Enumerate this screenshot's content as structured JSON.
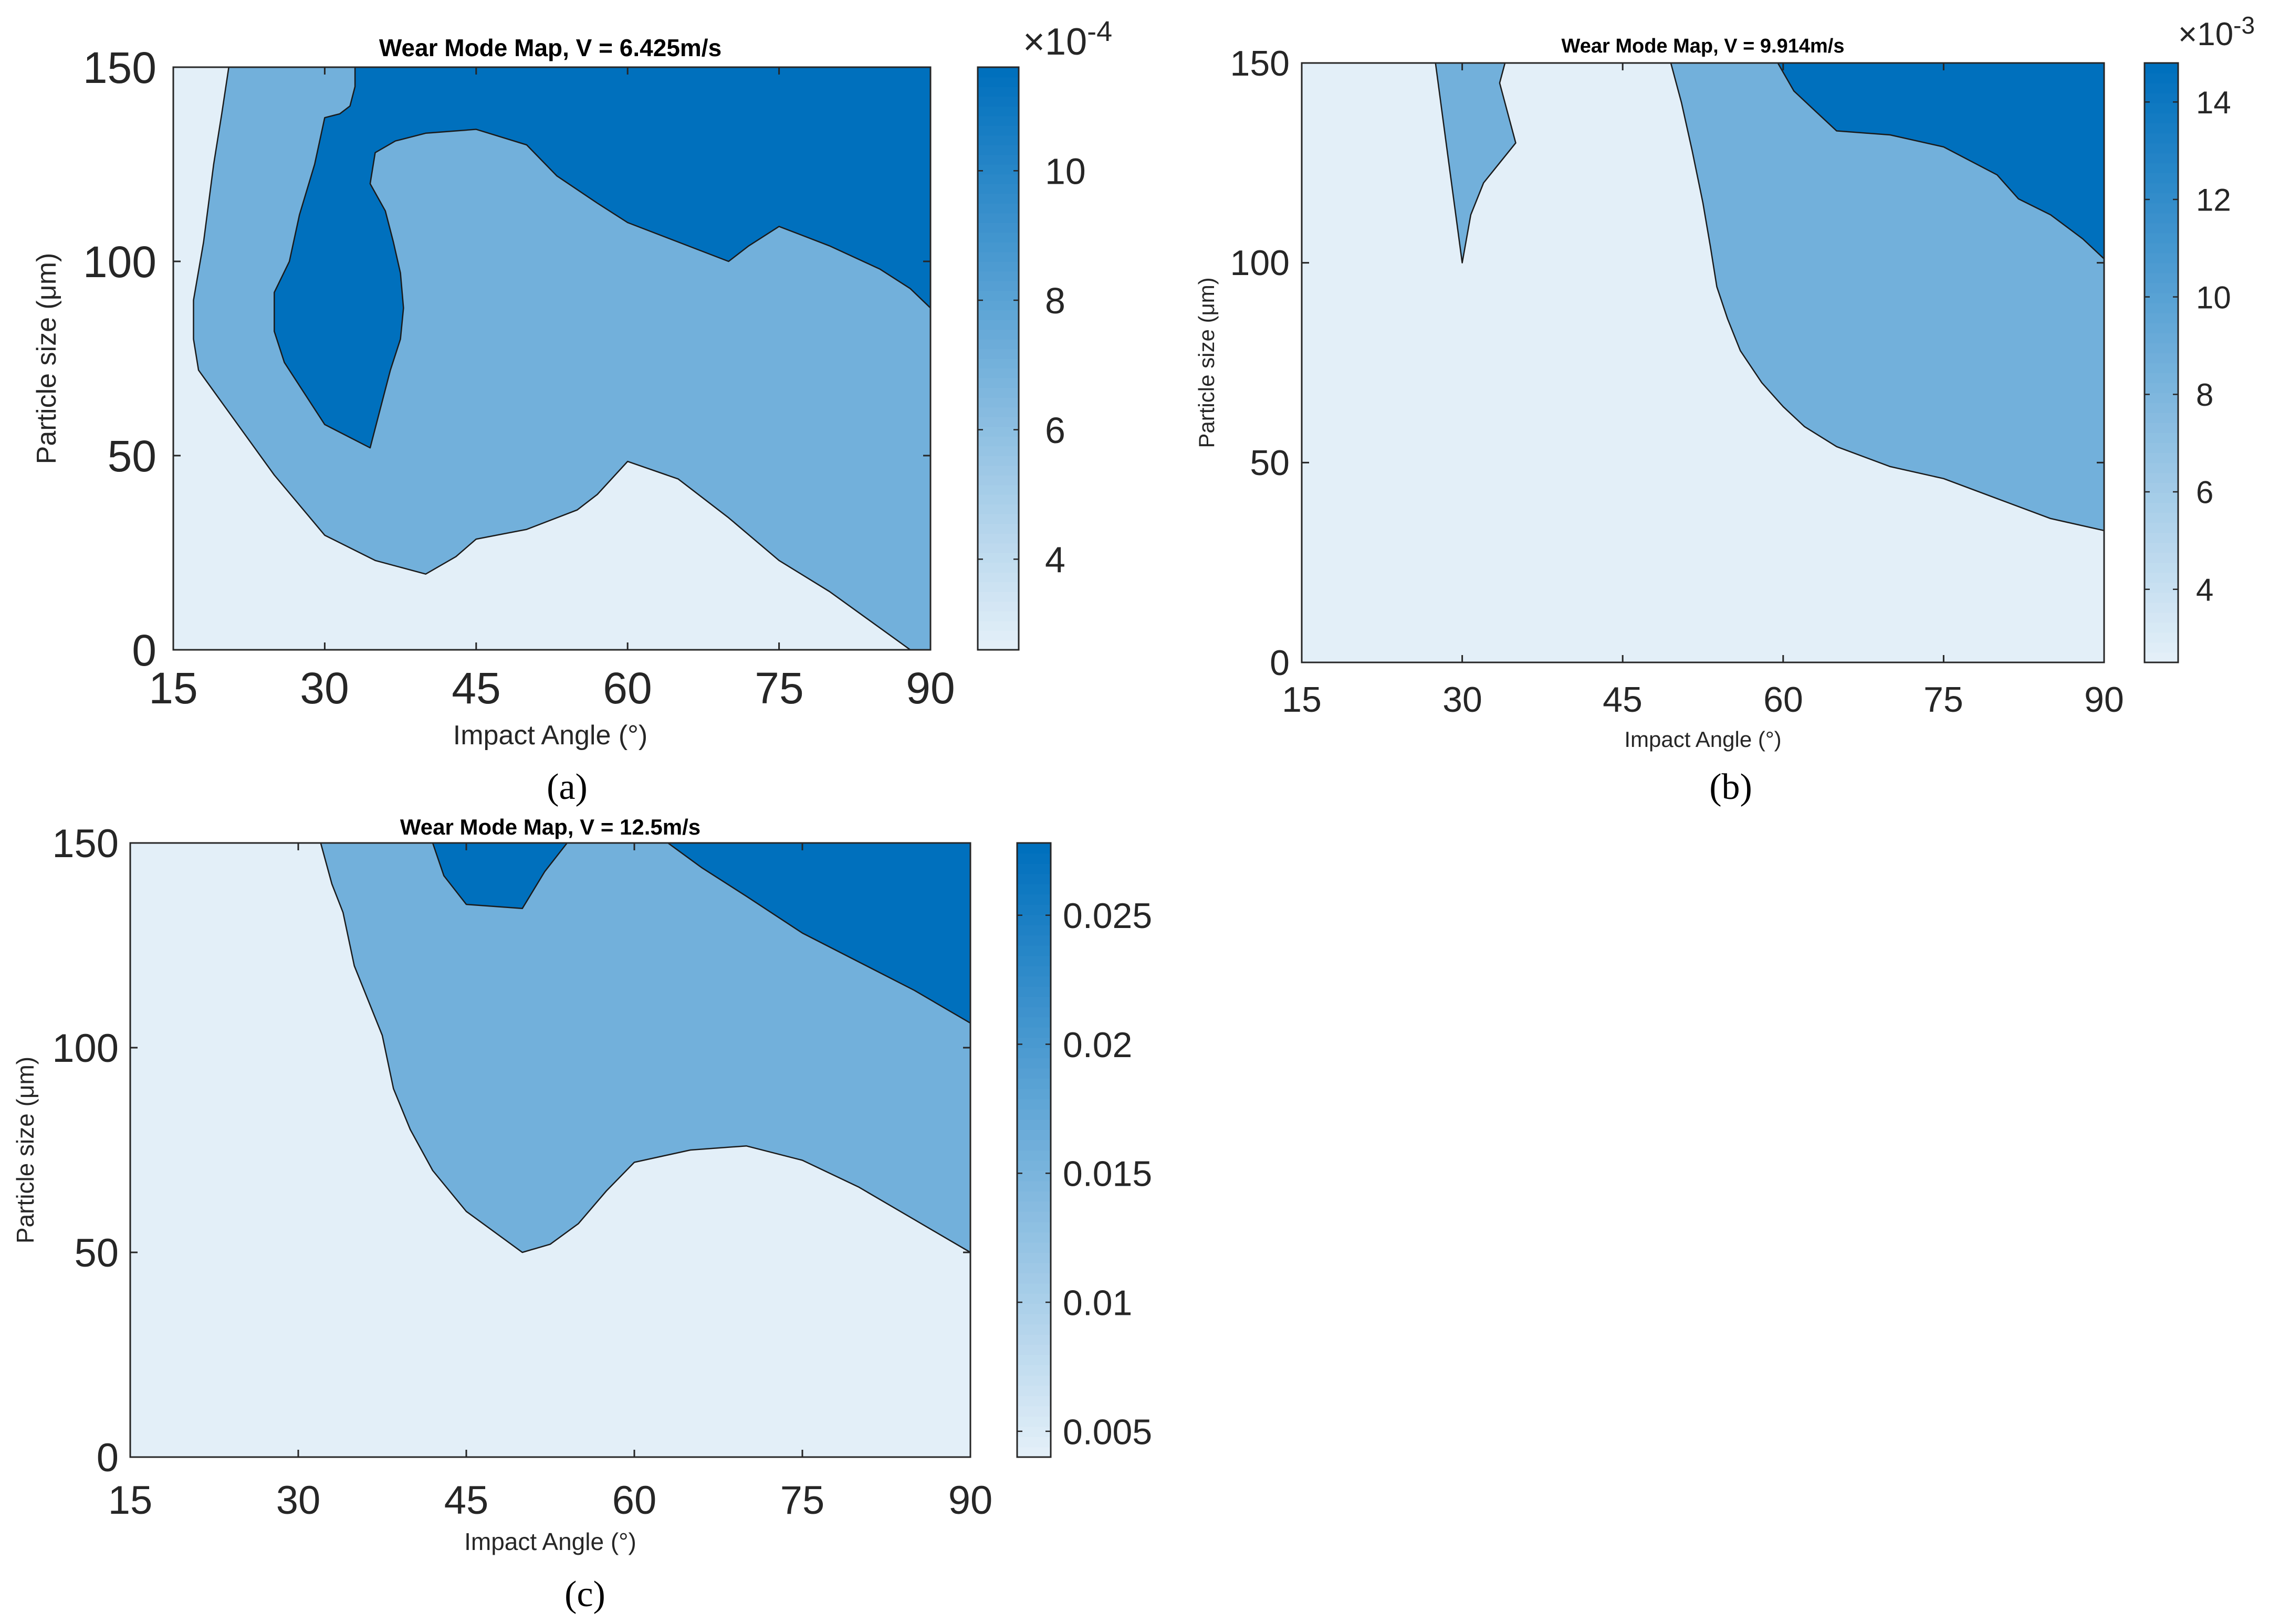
{
  "figure": {
    "panel_labels": [
      "(a)",
      "(b)",
      "(c)"
    ]
  },
  "chart_data": [
    {
      "type": "contourf",
      "title": "Wear Mode Map, V = 6.425m/s",
      "xlabel": "Impact Angle (°)",
      "ylabel": "Particle size (μm)",
      "xlim": [
        15,
        90
      ],
      "ylim": [
        0,
        150
      ],
      "xticks": [
        "15",
        "30",
        "45",
        "60",
        "75",
        "90"
      ],
      "yticks": [
        "0",
        "50",
        "100",
        "150"
      ],
      "colorbar": {
        "range": [
          2.6,
          11.6
        ],
        "ticks": [
          "4",
          "6",
          "8",
          "10"
        ],
        "tick_values": [
          4,
          6,
          8,
          10
        ],
        "exponent_label": "×10",
        "exponent_power": "-4"
      },
      "levels": [
        {
          "name": "low",
          "color": "#e3eff8"
        },
        {
          "name": "mid",
          "color": "#72b0db"
        },
        {
          "name": "high",
          "color": "#0070bd"
        }
      ],
      "regions": [
        {
          "level": "low",
          "points": [
            [
              15,
              0
            ],
            [
              90,
              0
            ],
            [
              90,
              150
            ],
            [
              15,
              150
            ]
          ]
        },
        {
          "level": "mid",
          "points": [
            [
              20.5,
              150
            ],
            [
              90,
              150
            ],
            [
              90,
              0
            ],
            [
              88,
              0
            ],
            [
              80,
              15
            ],
            [
              75,
              23
            ],
            [
              70,
              34
            ],
            [
              65,
              44
            ],
            [
              60,
              48.5
            ],
            [
              57,
              40
            ],
            [
              55,
              36
            ],
            [
              50,
              31
            ],
            [
              45,
              28.5
            ],
            [
              43,
              24
            ],
            [
              40,
              19.5
            ],
            [
              35,
              23
            ],
            [
              30,
              29.5
            ],
            [
              25,
              45
            ],
            [
              20,
              63
            ],
            [
              17.5,
              72
            ],
            [
              17,
              80
            ],
            [
              17,
              90
            ],
            [
              18,
              105
            ],
            [
              19,
              125
            ],
            [
              19.8,
              138
            ]
          ]
        },
        {
          "level": "high",
          "points": [
            [
              39.5,
              150
            ],
            [
              90,
              150
            ],
            [
              90,
              88
            ],
            [
              88,
              93
            ],
            [
              85,
              98
            ],
            [
              80,
              104
            ],
            [
              75,
              109
            ],
            [
              72,
              104
            ],
            [
              70,
              100
            ],
            [
              65,
              105
            ],
            [
              60,
              110
            ],
            [
              57,
              115
            ],
            [
              53,
              122
            ],
            [
              50,
              130
            ],
            [
              45,
              134
            ],
            [
              40,
              133
            ],
            [
              37,
              131
            ],
            [
              35,
              128
            ],
            [
              34.5,
              120
            ],
            [
              36,
              113
            ],
            [
              36.8,
              105
            ],
            [
              37.5,
              97
            ],
            [
              37.8,
              88
            ],
            [
              37.5,
              80
            ],
            [
              36.5,
              72
            ],
            [
              35.5,
              62
            ],
            [
              34.5,
              52
            ],
            [
              30,
              58
            ],
            [
              28,
              66
            ],
            [
              26,
              74
            ],
            [
              25,
              82
            ],
            [
              25,
              92
            ],
            [
              26.5,
              100
            ],
            [
              27.5,
              112
            ],
            [
              29,
              125
            ],
            [
              30,
              137
            ],
            [
              31.5,
              138
            ],
            [
              32.5,
              140
            ],
            [
              33,
              145
            ],
            [
              33,
              150
            ]
          ]
        }
      ]
    },
    {
      "type": "contourf",
      "title": "Wear Mode Map, V = 9.914m/s",
      "xlabel": "Impact Angle (°)",
      "ylabel": "Particle size (μm)",
      "xlim": [
        15,
        90
      ],
      "ylim": [
        0,
        150
      ],
      "xticks": [
        "15",
        "30",
        "45",
        "60",
        "75",
        "90"
      ],
      "yticks": [
        "0",
        "50",
        "100",
        "150"
      ],
      "colorbar": {
        "range": [
          2.5,
          14.8
        ],
        "ticks": [
          "4",
          "6",
          "8",
          "10",
          "12",
          "14"
        ],
        "tick_values": [
          4,
          6,
          8,
          10,
          12,
          14
        ],
        "exponent_label": "×10",
        "exponent_power": "-3"
      },
      "levels": [
        {
          "name": "low",
          "color": "#e3eff8"
        },
        {
          "name": "mid",
          "color": "#72b0db"
        },
        {
          "name": "high",
          "color": "#0070bd"
        }
      ],
      "regions": [
        {
          "level": "low",
          "points": [
            [
              15,
              0
            ],
            [
              90,
              0
            ],
            [
              90,
              150
            ],
            [
              15,
              150
            ]
          ]
        },
        {
          "level": "mid",
          "points": [
            [
              27.5,
              150
            ],
            [
              34,
              150
            ],
            [
              33.5,
              145
            ],
            [
              34.2,
              138
            ],
            [
              35,
              130
            ],
            [
              33.5,
              125
            ],
            [
              32,
              120
            ],
            [
              30.8,
              112
            ],
            [
              30,
              100
            ],
            [
              29.5,
              110
            ],
            [
              28.5,
              130
            ]
          ]
        },
        {
          "level": "mid",
          "points": [
            [
              49.5,
              150
            ],
            [
              90,
              150
            ],
            [
              90,
              33
            ],
            [
              85,
              36
            ],
            [
              80,
              41
            ],
            [
              75,
              46
            ],
            [
              70,
              49
            ],
            [
              65,
              54
            ],
            [
              62,
              59
            ],
            [
              60,
              64
            ],
            [
              58,
              70
            ],
            [
              56,
              78
            ],
            [
              54.8,
              86
            ],
            [
              53.8,
              94
            ],
            [
              53.2,
              104
            ],
            [
              52.5,
              115
            ],
            [
              51.5,
              128
            ],
            [
              50.5,
              140
            ]
          ]
        },
        {
          "level": "high",
          "points": [
            [
              59.5,
              150
            ],
            [
              90,
              150
            ],
            [
              90,
              101
            ],
            [
              88,
              106
            ],
            [
              85,
              112
            ],
            [
              82,
              116
            ],
            [
              80,
              122
            ],
            [
              75,
              129
            ],
            [
              70,
              132
            ],
            [
              65,
              133
            ],
            [
              63,
              138
            ],
            [
              61,
              143
            ]
          ]
        }
      ]
    },
    {
      "type": "contourf",
      "title": "Wear Mode Map, V = 12.5m/s",
      "xlabel": "Impact Angle (°)",
      "ylabel": "Particle size (μm)",
      "xlim": [
        15,
        90
      ],
      "ylim": [
        0,
        150
      ],
      "xticks": [
        "15",
        "30",
        "45",
        "60",
        "75",
        "90"
      ],
      "yticks": [
        "0",
        "50",
        "100",
        "150"
      ],
      "colorbar": {
        "range": [
          0.004,
          0.0278
        ],
        "ticks": [
          "0.005",
          "0.01",
          "0.015",
          "0.02",
          "0.025"
        ],
        "tick_values": [
          0.005,
          0.01,
          0.015,
          0.02,
          0.025
        ],
        "exponent_label": "",
        "exponent_power": ""
      },
      "levels": [
        {
          "name": "low",
          "color": "#e3eff8"
        },
        {
          "name": "mid",
          "color": "#72b0db"
        },
        {
          "name": "high",
          "color": "#0070bd"
        }
      ],
      "regions": [
        {
          "level": "low",
          "points": [
            [
              15,
              0
            ],
            [
              90,
              0
            ],
            [
              90,
              150
            ],
            [
              15,
              150
            ]
          ]
        },
        {
          "level": "mid",
          "points": [
            [
              32,
              150
            ],
            [
              90,
              150
            ],
            [
              90,
              50
            ],
            [
              85,
              58
            ],
            [
              80,
              66
            ],
            [
              75,
              72.5
            ],
            [
              70,
              76
            ],
            [
              65,
              75
            ],
            [
              60,
              72
            ],
            [
              57.5,
              65
            ],
            [
              55,
              57
            ],
            [
              52.5,
              52
            ],
            [
              50,
              50
            ],
            [
              48,
              54
            ],
            [
              45,
              60
            ],
            [
              42,
              70
            ],
            [
              40,
              80
            ],
            [
              38.5,
              90
            ],
            [
              37.5,
              103
            ],
            [
              35,
              120
            ],
            [
              34,
              133
            ],
            [
              33,
              140
            ]
          ]
        },
        {
          "level": "high",
          "points": [
            [
              42,
              150
            ],
            [
              54,
              150
            ],
            [
              52,
              143
            ],
            [
              50,
              134
            ],
            [
              45,
              135
            ],
            [
              43,
              142
            ]
          ]
        },
        {
          "level": "high",
          "points": [
            [
              63,
              150
            ],
            [
              90,
              150
            ],
            [
              90,
              106
            ],
            [
              85,
              114
            ],
            [
              80,
              121
            ],
            [
              75,
              128
            ],
            [
              70,
              137
            ],
            [
              66,
              144
            ]
          ]
        }
      ]
    }
  ]
}
